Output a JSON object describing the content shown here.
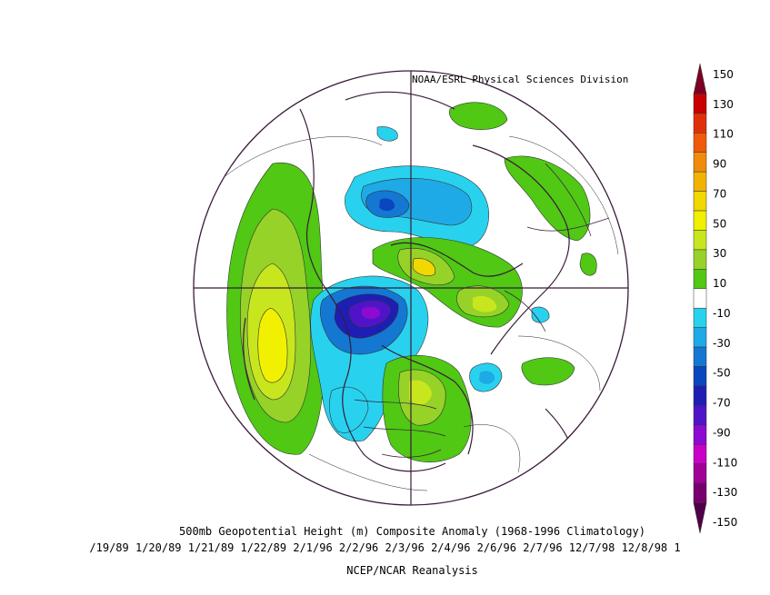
{
  "header": {
    "credit": "NOAA/ESRL Physical Sciences Division"
  },
  "footer": {
    "title": "500mb Geopotential Height (m) Composite Anomaly (1968-1996 Climatology)",
    "dates": "/19/89 1/20/89 1/21/89 1/22/89 2/1/96 2/2/96 2/3/96 2/4/96 2/6/96 2/7/96 12/7/98 12/8/98 1",
    "source": "NCEP/NCAR Reanalysis"
  },
  "colorbar": {
    "ticks": [
      "150",
      "130",
      "110",
      "90",
      "70",
      "50",
      "30",
      "10",
      "-10",
      "-30",
      "-50",
      "-70",
      "-90",
      "-110",
      "-130",
      "-150"
    ],
    "colors": [
      "#7d0024",
      "#c80000",
      "#e0300a",
      "#f05a0a",
      "#f08c0a",
      "#f0b400",
      "#f0d800",
      "#f0f000",
      "#c8e61e",
      "#96d228",
      "#50c814",
      "#ffffff",
      "#28d2ee",
      "#1eaae6",
      "#1478d2",
      "#0a46be",
      "#1e1eb4",
      "#5014c8",
      "#8c0ad2",
      "#c800c8",
      "#a00096",
      "#78006e",
      "#500046"
    ]
  },
  "features": {
    "positive_icons": [
      "alaska-ridge",
      "atlantic-ridge",
      "europe-anomaly",
      "north-america-ridge",
      "pacific-ridge"
    ],
    "negative_icons": [
      "arctic-low",
      "canada-trough",
      "siberia-low"
    ]
  }
}
